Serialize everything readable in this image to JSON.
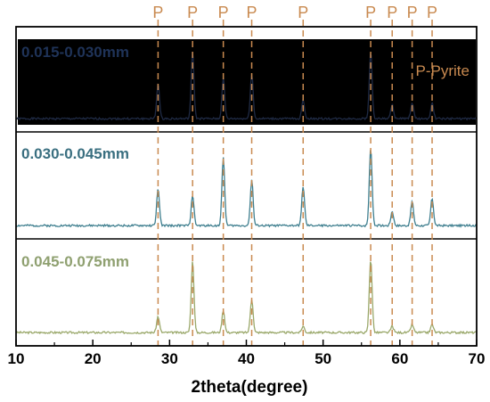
{
  "chart_data": {
    "type": "line",
    "xlabel": "2theta(degree)",
    "xlim": [
      10,
      70
    ],
    "x_ticks": [
      10,
      20,
      30,
      40,
      50,
      60,
      70
    ],
    "legend_text": "P-Pyrite",
    "peak_marker_label": "P",
    "peak_positions": [
      28.5,
      33.0,
      37.0,
      40.7,
      47.4,
      56.2,
      59.0,
      61.6,
      64.2
    ],
    "marker_color": "#c98a50",
    "series": [
      {
        "name": "0.015-0.030mm",
        "color": "#1f2a44",
        "label_color": "#1f3358",
        "peaks": [
          {
            "x": 28.5,
            "height": 0.45
          },
          {
            "x": 33.0,
            "height": 0.86
          },
          {
            "x": 37.0,
            "height": 0.52
          },
          {
            "x": 40.7,
            "height": 0.58
          },
          {
            "x": 47.4,
            "height": 0.24
          },
          {
            "x": 56.2,
            "height": 0.86
          },
          {
            "x": 59.0,
            "height": 0.18
          },
          {
            "x": 61.6,
            "height": 0.2
          },
          {
            "x": 64.2,
            "height": 0.2
          }
        ]
      },
      {
        "name": "0.030-0.045mm",
        "color": "#3f7f8f",
        "label_color": "#3a6f80",
        "peaks": [
          {
            "x": 28.5,
            "height": 0.45
          },
          {
            "x": 33.0,
            "height": 0.38
          },
          {
            "x": 37.0,
            "height": 0.85
          },
          {
            "x": 40.7,
            "height": 0.57
          },
          {
            "x": 47.4,
            "height": 0.49
          },
          {
            "x": 56.2,
            "height": 0.97
          },
          {
            "x": 59.0,
            "height": 0.18
          },
          {
            "x": 61.6,
            "height": 0.3
          },
          {
            "x": 64.2,
            "height": 0.34
          }
        ]
      },
      {
        "name": "0.045-0.075mm",
        "color": "#9aa86a",
        "label_color": "#8fa070",
        "peaks": [
          {
            "x": 28.5,
            "height": 0.2
          },
          {
            "x": 33.0,
            "height": 0.9
          },
          {
            "x": 37.0,
            "height": 0.28
          },
          {
            "x": 40.7,
            "height": 0.42
          },
          {
            "x": 47.4,
            "height": 0.08
          },
          {
            "x": 56.2,
            "height": 0.92
          },
          {
            "x": 59.0,
            "height": 0.08
          },
          {
            "x": 61.6,
            "height": 0.1
          },
          {
            "x": 64.2,
            "height": 0.1
          }
        ]
      }
    ]
  }
}
